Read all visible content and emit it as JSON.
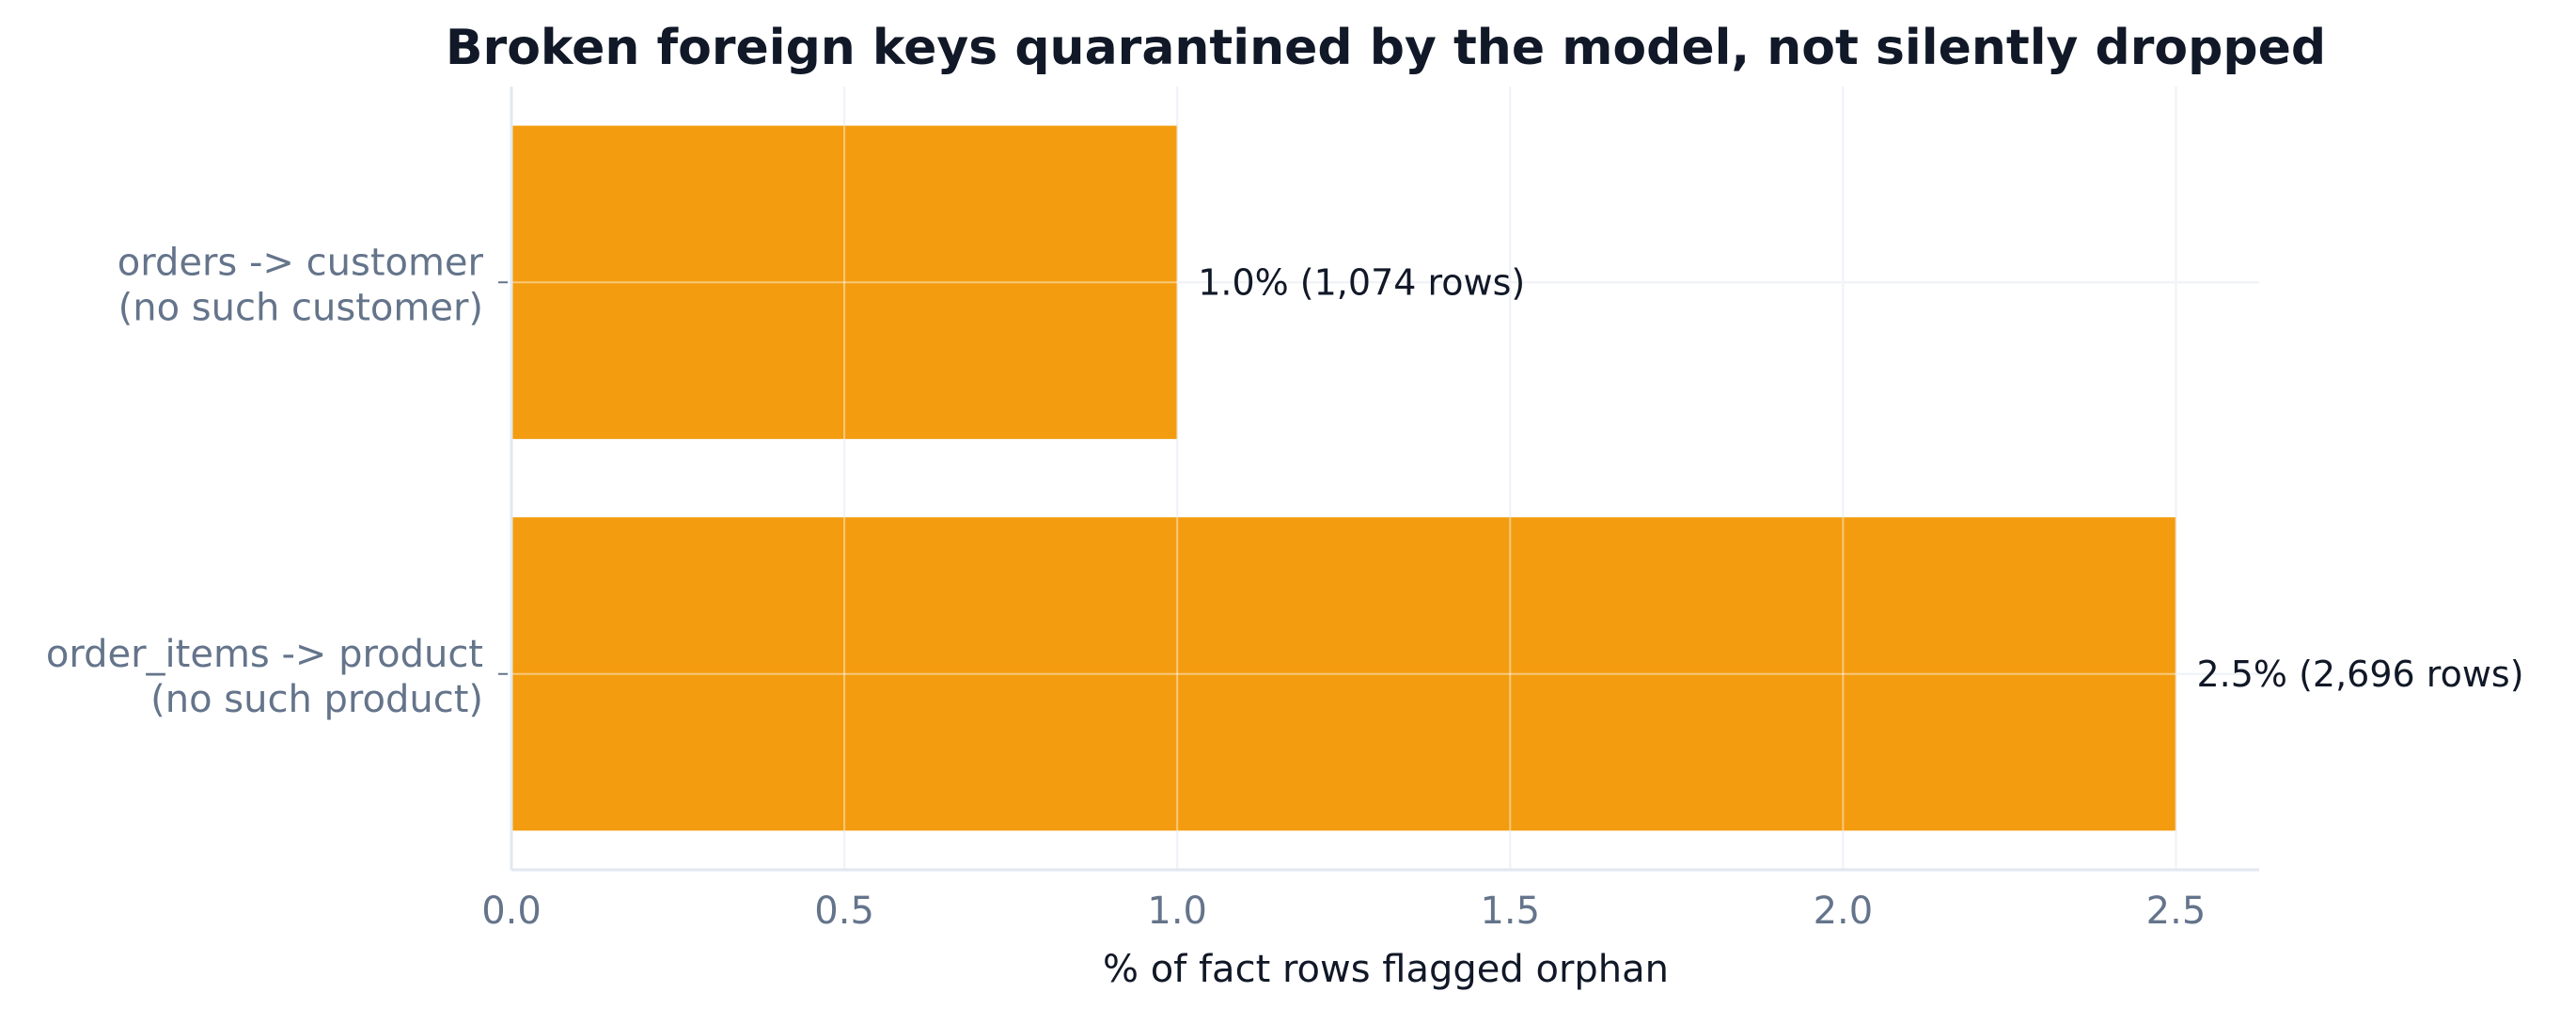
{
  "chart_data": {
    "type": "bar",
    "orientation": "horizontal",
    "title": "Broken foreign keys quarantined by the model, not silently dropped",
    "xlabel": "% of fact rows flagged orphan",
    "ylabel": "",
    "xlim": [
      0,
      2.625
    ],
    "xticks": [
      0.0,
      0.5,
      1.0,
      1.5,
      2.0,
      2.5
    ],
    "xtick_labels": [
      "0.0",
      "0.5",
      "1.0",
      "1.5",
      "2.0",
      "2.5"
    ],
    "grid": true,
    "legend": "none",
    "bar_color": "#f39c0f",
    "categories": [
      [
        "orders -> customer",
        "(no such customer)"
      ],
      [
        "order_items -> product",
        "(no such product)"
      ]
    ],
    "values": [
      1.0,
      2.5
    ],
    "data_labels": [
      "1.0%  (1,074 rows)",
      "2.5%  (2,696 rows)"
    ]
  }
}
